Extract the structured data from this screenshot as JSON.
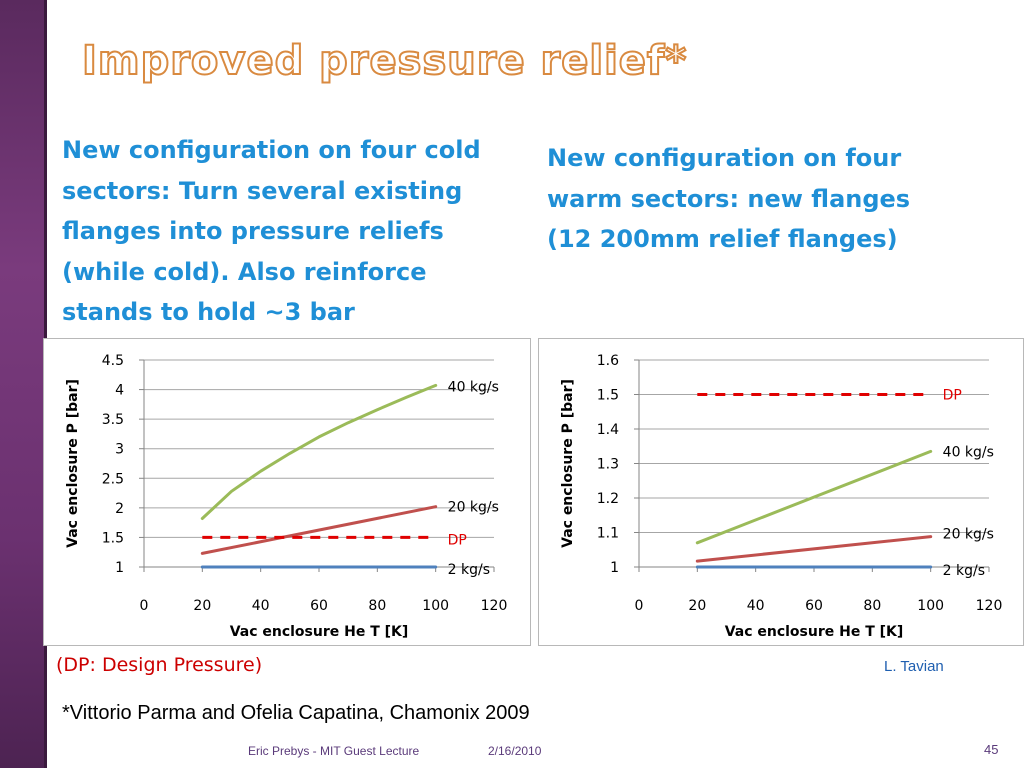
{
  "slide": {
    "title": "Improved pressure relief*",
    "left_text": "New configuration on four cold sectors:  Turn several existing flanges into pressure reliefs (while cold). Also reinforce stands to hold ~3 bar",
    "right_text": "New configuration on four warm sectors: new flanges (12 200mm relief flanges)",
    "dp_note": "(DP: Design Pressure)",
    "author": "L. Tavian",
    "citation": "*Vittorio Parma and Ofelia Capatina, Chamonix 2009",
    "footer_left": "Eric Prebys - MIT Guest Lecture",
    "footer_date": "2/16/2010",
    "page_number": "45"
  },
  "colors": {
    "title_outline": "#d98a40",
    "body_text": "#1f8fd6",
    "series_40": "#9bbb59",
    "series_20": "#c0504d",
    "series_2": "#4f81bd",
    "dp": "#e00000"
  },
  "chart_data": [
    {
      "type": "line",
      "xlabel": "Vac enclosure He T [K]",
      "ylabel": "Vac enclosure P [bar]",
      "xlim": [
        0,
        120
      ],
      "ylim": [
        1,
        4.5
      ],
      "xticks": [
        "0",
        "20",
        "40",
        "60",
        "80",
        "100",
        "120"
      ],
      "yticks": [
        "1",
        "1.5",
        "2",
        "2.5",
        "3",
        "3.5",
        "4",
        "4.5"
      ],
      "grid": true,
      "series": [
        {
          "name": "40 kg/s",
          "color": "#9bbb59",
          "x": [
            20,
            30,
            40,
            50,
            60,
            70,
            80,
            90,
            100
          ],
          "y": [
            1.82,
            2.28,
            2.62,
            2.92,
            3.2,
            3.44,
            3.66,
            3.87,
            4.07
          ]
        },
        {
          "name": "20 kg/s",
          "color": "#c0504d",
          "x": [
            20,
            100
          ],
          "y": [
            1.23,
            2.02
          ]
        },
        {
          "name": "DP",
          "color": "#e00000",
          "dashed": true,
          "x": [
            20,
            100
          ],
          "y": [
            1.5,
            1.5
          ]
        },
        {
          "name": "2 kg/s",
          "color": "#4f81bd",
          "x": [
            20,
            100
          ],
          "y": [
            1.0,
            1.0
          ]
        }
      ]
    },
    {
      "type": "line",
      "xlabel": "Vac enclosure He T [K]",
      "ylabel": "Vac enclosure P [bar]",
      "xlim": [
        0,
        120
      ],
      "ylim": [
        1,
        1.6
      ],
      "xticks": [
        "0",
        "20",
        "40",
        "60",
        "80",
        "100",
        "120"
      ],
      "yticks": [
        "1",
        "1.1",
        "1.2",
        "1.3",
        "1.4",
        "1.5",
        "1.6"
      ],
      "grid": true,
      "series": [
        {
          "name": "DP",
          "color": "#e00000",
          "dashed": true,
          "x": [
            20,
            100
          ],
          "y": [
            1.5,
            1.5
          ]
        },
        {
          "name": "40 kg/s",
          "color": "#9bbb59",
          "x": [
            20,
            100
          ],
          "y": [
            1.07,
            1.335
          ]
        },
        {
          "name": "20 kg/s",
          "color": "#c0504d",
          "x": [
            20,
            100
          ],
          "y": [
            1.017,
            1.088
          ]
        },
        {
          "name": "2 kg/s",
          "color": "#4f81bd",
          "x": [
            20,
            100
          ],
          "y": [
            1.0,
            1.0
          ]
        }
      ]
    }
  ]
}
